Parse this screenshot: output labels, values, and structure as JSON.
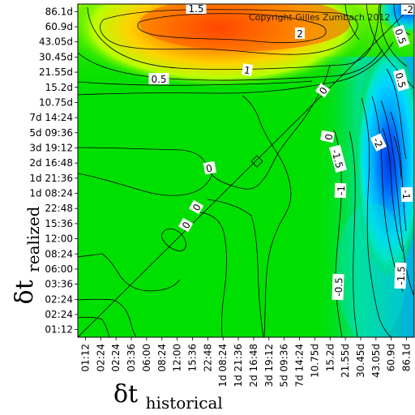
{
  "chart_data": {
    "type": "heatmap",
    "title": "",
    "copyright": "Copyright Gilles Zumbach 2012",
    "xlabel": {
      "symbol": "δt",
      "subscript": "historical"
    },
    "ylabel": {
      "symbol": "δt",
      "subscript": "realized"
    },
    "x_ticks": [
      "01:12",
      "02:24",
      "02:24",
      "03:36",
      "06:00",
      "08:24",
      "12:00",
      "15:36",
      "22:48",
      "1d 08:24",
      "1d 21:36",
      "2d 16:48",
      "3d 19:12",
      "5d 09:36",
      "7d 14:24",
      "10.75d",
      "15.2d",
      "21.55d",
      "30.45d",
      "43.05d",
      "60.9d",
      "86.1d"
    ],
    "y_ticks": [
      "86.1d",
      "60.9d",
      "43.05d",
      "30.45d",
      "21.55d",
      "15.2d",
      "10.75d",
      "7d 14:24",
      "5d 09:36",
      "3d 19:12",
      "2d 16:48",
      "1d 21:36",
      "1d 08:24",
      "22:48",
      "15:36",
      "12:00",
      "08:24",
      "06:00",
      "03:36",
      "02:24",
      "02:24",
      "01:12"
    ],
    "contour_labels": [
      "1.5",
      "2",
      "0.5",
      "1",
      "0.5",
      "0",
      "0",
      "0",
      "0",
      "0",
      "0",
      "-2",
      "0.5",
      "0",
      "-1.5",
      "-2",
      "-1",
      "-1",
      "-0.5",
      "-1.5"
    ],
    "colors": {
      "strong_negative": "#0038e0",
      "negative": "#00b0ff",
      "weak_negative": "#00e0b0",
      "neutral": "#00e000",
      "weak_positive": "#b0ff00",
      "positive": "#ffcc00",
      "strong_positive": "#ff3000"
    },
    "grid": false
  }
}
